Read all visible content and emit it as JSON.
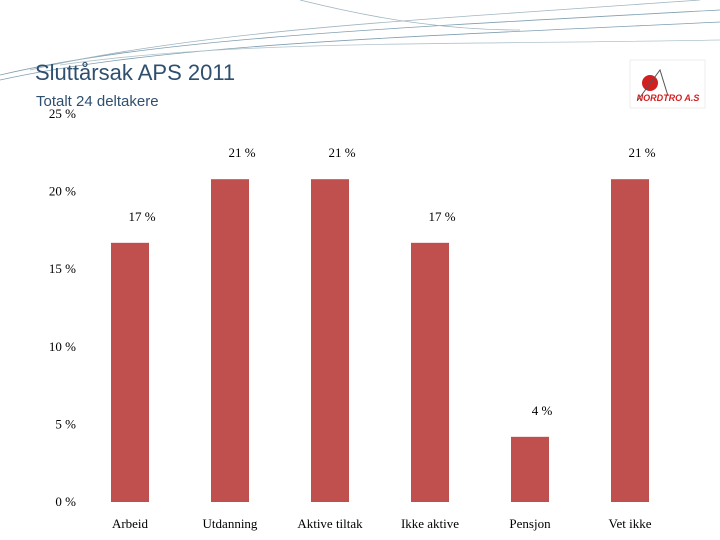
{
  "chart_data": {
    "type": "bar",
    "title": "Sluttårsak APS 2011",
    "subtitle": "Totalt 24 deltakere",
    "logo_text": "NORDTRO A.S",
    "categories": [
      "Arbeid",
      "Utdanning",
      "Aktive tiltak",
      "Ikke aktive",
      "Pensjon",
      "Vet ikke"
    ],
    "values": [
      16.7,
      20.8,
      20.8,
      16.7,
      4.2,
      20.8
    ],
    "value_labels": [
      "17 %",
      "21 %",
      "21 %",
      "17 %",
      "4 %",
      "21 %"
    ],
    "color": "#c0504d",
    "ylim": [
      0,
      25
    ],
    "yticks": [
      {
        "value": 0,
        "label": "0 %"
      },
      {
        "value": 5,
        "label": "5 %"
      },
      {
        "value": 10,
        "label": "10 %"
      },
      {
        "value": 15,
        "label": "15 %"
      },
      {
        "value": 20,
        "label": "20 %"
      },
      {
        "value": 25,
        "label": "25 %"
      }
    ],
    "grid": false
  }
}
